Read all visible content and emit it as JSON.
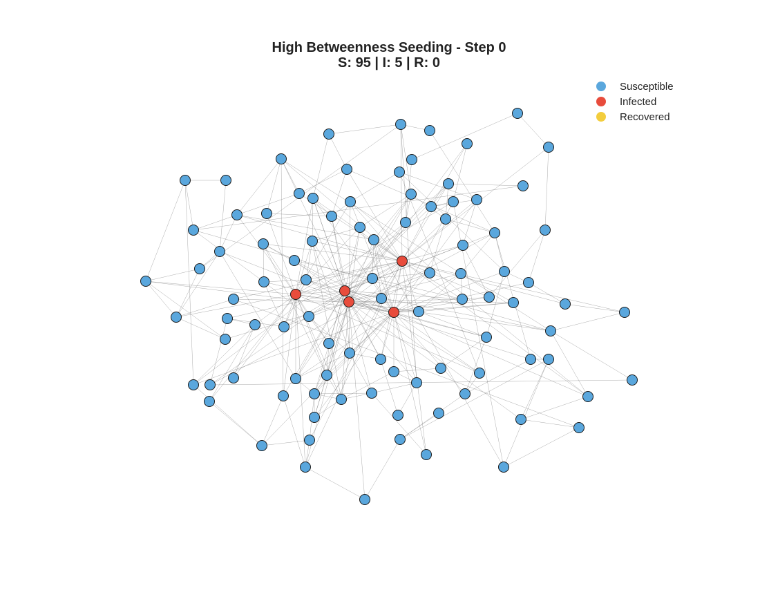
{
  "title": "High Betweenness Seeding - Step 0",
  "subtitle": "S: 95 | I: 5 | R: 0",
  "legend": [
    {
      "label": "Susceptible",
      "color": "#5aa7dd"
    },
    {
      "label": "Infected",
      "color": "#e84c3c"
    },
    {
      "label": "Recovered",
      "color": "#f3cd3d"
    }
  ],
  "colors": {
    "S": "#5aa7dd",
    "I": "#e84c3c",
    "R": "#f3cd3d"
  },
  "network": {
    "state_counts": {
      "S": 95,
      "I": 5,
      "R": 0
    },
    "infected_count": 5,
    "susceptible_count": 95
  }
}
